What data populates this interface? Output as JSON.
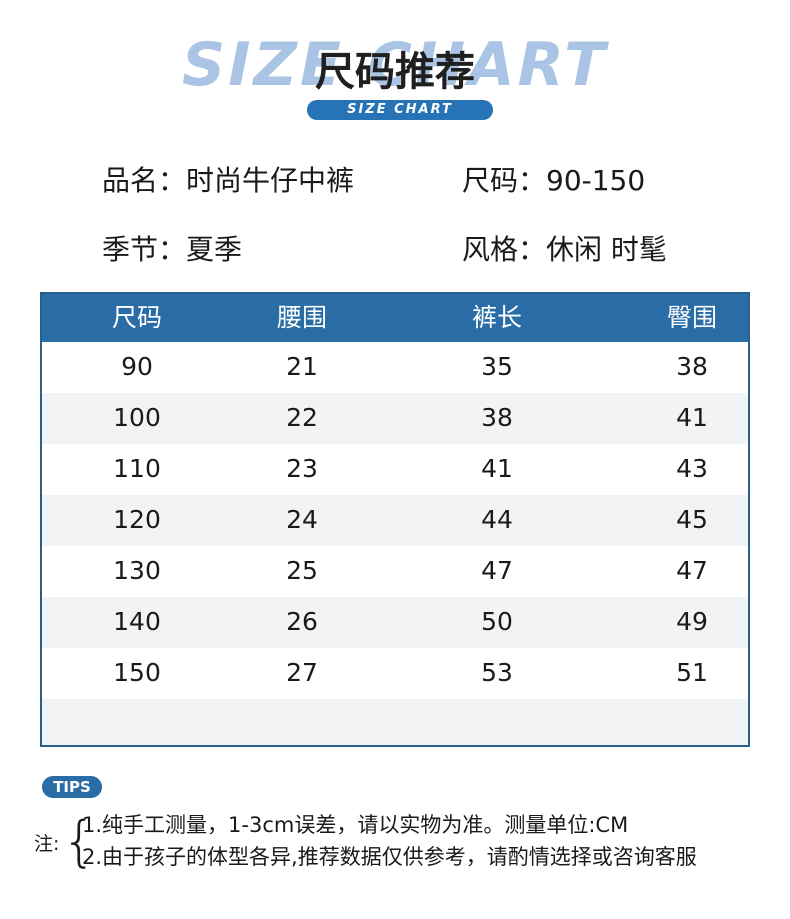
{
  "header": {
    "bg_title": "SIZE CHART",
    "title": "尺码推荐",
    "pill": "SIZE CHART"
  },
  "info": {
    "name": "品名：时尚牛仔中裤",
    "size": "尺码：90-150",
    "season": "季节：夏季",
    "style": "风格：休闲 时髦"
  },
  "table": {
    "headers": [
      "尺码",
      "腰围",
      "裤长",
      "臀围"
    ],
    "rows": [
      [
        "90",
        "21",
        "35",
        "38"
      ],
      [
        "100",
        "22",
        "38",
        "41"
      ],
      [
        "110",
        "23",
        "41",
        "43"
      ],
      [
        "120",
        "24",
        "44",
        "45"
      ],
      [
        "130",
        "25",
        "47",
        "47"
      ],
      [
        "140",
        "26",
        "50",
        "49"
      ],
      [
        "150",
        "27",
        "53",
        "51"
      ]
    ]
  },
  "tips": {
    "badge": "TIPS",
    "label": "注:",
    "brace": "{",
    "notes": [
      "1.纯手工测量，1-3cm误差，请以实物为准。测量单位:CM",
      "2.由于孩子的体型各异,推荐数据仅供参考，请酌情选择或咨询客服"
    ]
  },
  "colors": {
    "accent": "#2a6ca6",
    "bg_title": "#a9c4e4"
  }
}
